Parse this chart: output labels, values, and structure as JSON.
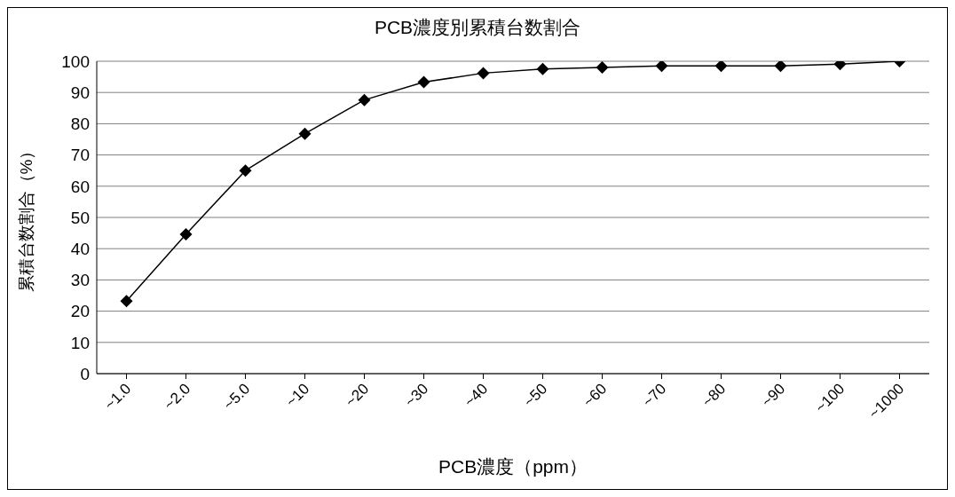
{
  "chart_data": {
    "type": "line",
    "title": "PCB濃度別累積台数割合",
    "xlabel": "PCB濃度（ppm）",
    "ylabel": "累積台数割合（%）",
    "categories": [
      "~1.0",
      "~2.0",
      "~5.0",
      "~10",
      "~20",
      "~30",
      "~40",
      "~50",
      "~60",
      "~70",
      "~80",
      "~90",
      "~100",
      "~1000"
    ],
    "series": [
      {
        "color": "#000000",
        "values": [
          23.2,
          44.6,
          65.0,
          76.8,
          87.6,
          93.3,
          96.2,
          97.5,
          98.0,
          98.5,
          98.5,
          98.5,
          99.1,
          100
        ]
      }
    ],
    "ylim": [
      0,
      100
    ],
    "yticks": [
      0,
      10,
      20,
      30,
      40,
      50,
      60,
      70,
      80,
      90,
      100
    ],
    "grid": "y",
    "marker": "diamond",
    "line_style": "solid"
  }
}
